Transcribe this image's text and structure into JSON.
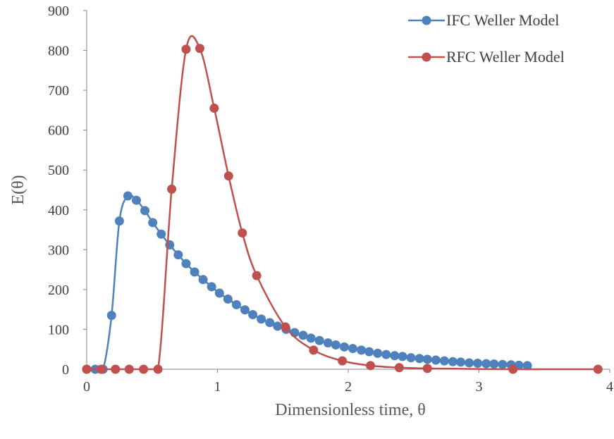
{
  "chart_data": {
    "type": "scatter",
    "title": "",
    "xlabel": "Dimensionless time, θ",
    "ylabel": "E(θ)",
    "xlim": [
      0,
      4
    ],
    "ylim": [
      0,
      900
    ],
    "xticks": [
      "0",
      "1",
      "2",
      "3",
      "4"
    ],
    "yticks": [
      "0",
      "100",
      "200",
      "300",
      "400",
      "500",
      "600",
      "700",
      "800",
      "900"
    ],
    "grid": false,
    "legend_position": "top-right",
    "series": [
      {
        "name": "IFC Weller Model",
        "color": "#4F81BD",
        "marker": "circle",
        "line": "smooth",
        "x": [
          0,
          0.065,
          0.125,
          0.19,
          0.25,
          0.315,
          0.38,
          0.445,
          0.505,
          0.57,
          0.635,
          0.7,
          0.76,
          0.825,
          0.89,
          0.955,
          1.015,
          1.08,
          1.145,
          1.21,
          1.27,
          1.335,
          1.4,
          1.46,
          1.525,
          1.59,
          1.655,
          1.715,
          1.78,
          1.845,
          1.905,
          1.97,
          2.035,
          2.1,
          2.16,
          2.225,
          2.29,
          2.355,
          2.415,
          2.48,
          2.545,
          2.605,
          2.67,
          2.735,
          2.8,
          2.86,
          2.925,
          2.99,
          3.055,
          3.115,
          3.18,
          3.245,
          3.305,
          3.37
        ],
        "y": [
          0,
          0,
          0,
          135,
          372,
          435,
          424,
          398,
          368,
          339,
          312,
          287,
          265,
          244,
          225,
          207,
          191,
          176,
          162,
          149,
          137,
          126,
          117,
          108,
          100,
          92,
          85,
          78,
          72,
          66,
          61,
          56,
          52,
          48,
          44,
          40,
          37,
          34,
          32,
          29,
          27,
          25,
          23,
          21,
          19,
          18,
          16,
          15,
          14,
          13,
          12,
          11,
          10,
          9
        ]
      },
      {
        "name": "RFC Weller Model",
        "color": "#C0504D",
        "marker": "circle",
        "line": "smooth",
        "x": [
          0,
          0.11,
          0.22,
          0.325,
          0.435,
          0.545,
          0.65,
          0.76,
          0.865,
          0.975,
          1.085,
          1.19,
          1.3,
          1.52,
          1.735,
          1.955,
          2.17,
          2.39,
          2.605,
          3.26,
          3.91
        ],
        "y": [
          0,
          0,
          0,
          0,
          0,
          0,
          452,
          803,
          805,
          655,
          485,
          342,
          235,
          106,
          48,
          21,
          9,
          4,
          2,
          0,
          0
        ]
      }
    ]
  }
}
